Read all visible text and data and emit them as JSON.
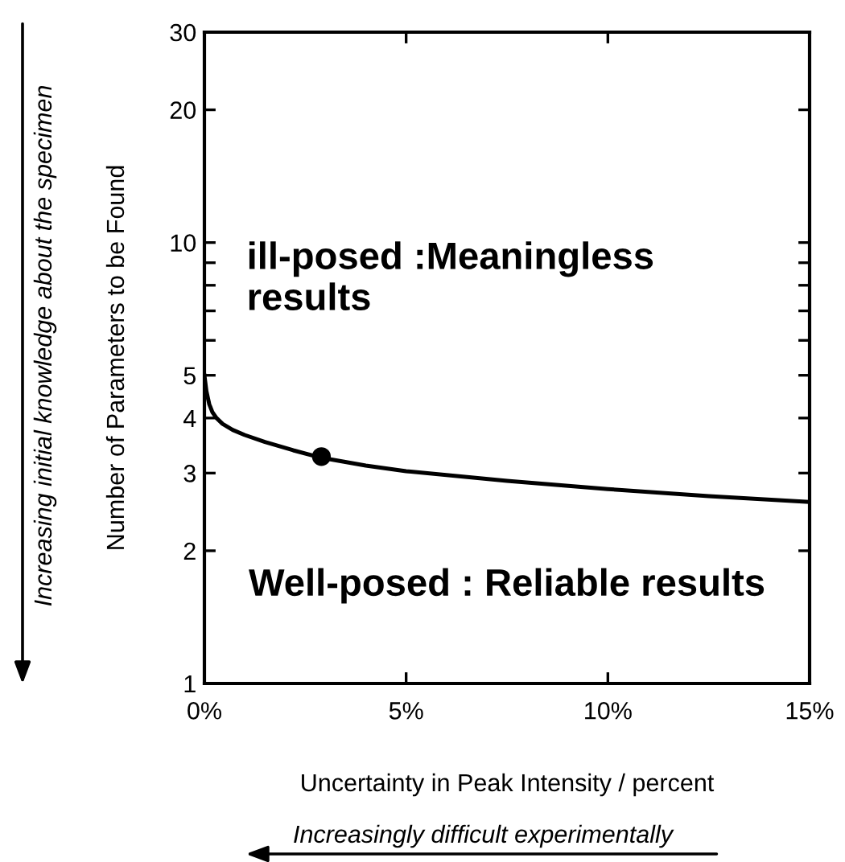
{
  "chart_data": {
    "type": "line",
    "xlabel": "Uncertainty in Peak Intensity / percent",
    "ylabel": "Number of Parameters to be Found",
    "xlim": [
      0,
      15
    ],
    "ylim": [
      1,
      30
    ],
    "log": "y",
    "xticks": [
      {
        "value": 0,
        "label": "0%"
      },
      {
        "value": 5,
        "label": "5%"
      },
      {
        "value": 10,
        "label": "10%"
      },
      {
        "value": 15,
        "label": "15%"
      }
    ],
    "yticks": [
      1,
      2,
      3,
      4,
      5,
      {
        "value": 6,
        "label": null
      },
      {
        "value": 7,
        "label": null
      },
      {
        "value": 8,
        "label": null
      },
      {
        "value": 9,
        "label": null
      },
      10,
      20,
      30
    ],
    "grid": false,
    "series": [
      {
        "color": "#000000",
        "marker": "none",
        "x": [
          0,
          0.05,
          0.12,
          0.2,
          0.3,
          0.45,
          0.7,
          1.0,
          1.5,
          2.2,
          2.9,
          4,
          5,
          7.5,
          10,
          12.5,
          15
        ],
        "values": [
          5,
          4.6,
          4.3,
          4.12,
          4.0,
          3.88,
          3.76,
          3.66,
          3.53,
          3.38,
          3.25,
          3.12,
          3.03,
          2.88,
          2.76,
          2.66,
          2.58
        ]
      },
      {
        "type": "scatter",
        "color": "#000000",
        "marker": "circle",
        "x": [
          2.9
        ],
        "values": [
          3.27
        ]
      }
    ],
    "annotations": [
      "ill-posed :Meaningless\nresults",
      "Well-posed : Reliable results",
      "Increasing initial knowledge about the specimen",
      "Increasingly difficult experimentally"
    ]
  }
}
